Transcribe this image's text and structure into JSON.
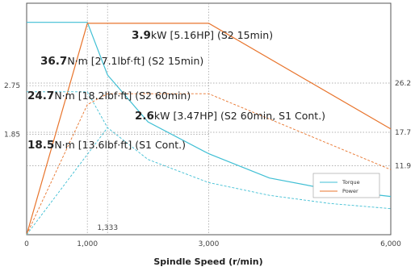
{
  "chart_data": {
    "type": "line",
    "xlabel": "Spindle Speed (r/min)",
    "x_ticks": [
      {
        "value": 0,
        "label": "0"
      },
      {
        "value": 1000,
        "label": "1,000"
      },
      {
        "value": 3000,
        "label": "3,000"
      },
      {
        "value": 6000,
        "label": "6,000"
      }
    ],
    "x_extra_marker": {
      "value": 1333,
      "label": "1,333"
    },
    "left_axis_ticks": [
      {
        "value": 2.75,
        "label": "2.75"
      },
      {
        "value": 1.85,
        "label": "1.85"
      }
    ],
    "right_axis_ticks": [
      {
        "value": 26.2,
        "label": "26.2"
      },
      {
        "value": 17.7,
        "label": "17.7"
      },
      {
        "value": 11.9,
        "label": "11.9"
      }
    ],
    "power_axis": {
      "min": 0,
      "max": 4.27,
      "unit": "kW"
    },
    "torque_axis": {
      "min": 0,
      "max": 40.0,
      "unit": "N·m"
    },
    "x_range": [
      0,
      6000
    ],
    "series": [
      {
        "name": "Torque",
        "axis": "torque",
        "style": "solid",
        "x": [
          0,
          1000,
          1333,
          2000,
          3000,
          4000,
          5000,
          6000
        ],
        "y": [
          36.7,
          36.7,
          27.6,
          19.5,
          14.0,
          9.8,
          7.8,
          6.6
        ]
      },
      {
        "name": "Power",
        "axis": "power",
        "style": "solid",
        "x": [
          0,
          1000,
          3000,
          6000
        ],
        "y": [
          0,
          3.9,
          3.9,
          1.95
        ]
      },
      {
        "axis": "torque",
        "style": "dashed",
        "x": [
          0,
          1000,
          1333,
          2000,
          3000,
          4000,
          5000,
          6000
        ],
        "y": [
          24.7,
          24.7,
          18.5,
          13.0,
          9.0,
          6.8,
          5.4,
          4.5
        ]
      },
      {
        "axis": "power",
        "style": "dashed",
        "x": [
          0,
          1000,
          1333,
          3000,
          6000
        ],
        "y": [
          0,
          2.4,
          2.6,
          2.6,
          1.2
        ]
      },
      {
        "axis": "torque",
        "style": "dashed",
        "x": [
          0,
          1333
        ],
        "y": [
          0,
          18.5
        ]
      }
    ],
    "annotations": [
      {
        "bold": "3.9",
        "text": "kW [5.16HP] (S2 15min)"
      },
      {
        "bold": "36.7",
        "text": "N·m [27.1lbf·ft] (S2 15min)"
      },
      {
        "bold": "24.7",
        "text": "N·m [18.2lbf·ft] (S2 60min)"
      },
      {
        "bold": "2.6",
        "text": "kW [3.47HP] (S2 60min, S1 Cont.)"
      },
      {
        "bold": "18.5",
        "text": "N·m [13.6lbf·ft] (S1 Cont.)"
      }
    ],
    "legend": {
      "position": "bottom-right",
      "entries": [
        "Torque",
        "Power"
      ]
    },
    "colors": {
      "torque": "#3fbfd4",
      "power": "#e8742c",
      "guide": "#999999"
    }
  }
}
